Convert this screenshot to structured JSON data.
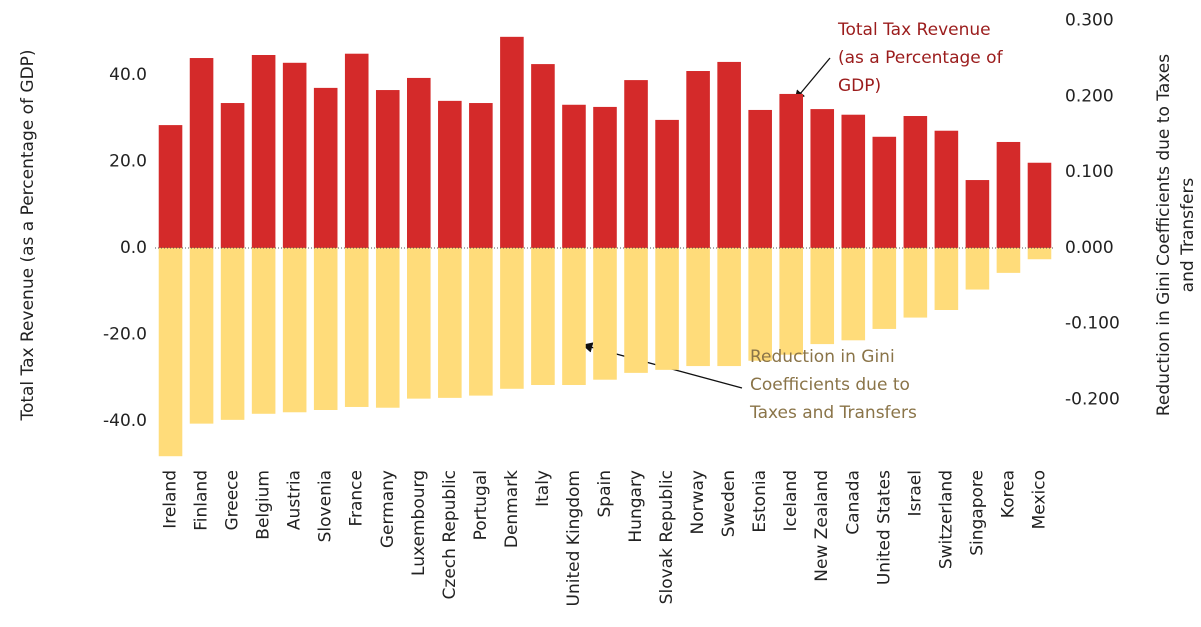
{
  "chart_data": {
    "type": "bar",
    "ylabel": "Total Tax Revenue (as a Percentage of GDP)",
    "y2label_lines": [
      "Reduction in Gini Coefficients due to Taxes",
      "and Transfers"
    ],
    "categories": [
      "Ireland",
      "Finland",
      "Greece",
      "Belgium",
      "Austria",
      "Slovenia",
      "France",
      "Germany",
      "Luxembourg",
      "Czech Republic",
      "Portugal",
      "Denmark",
      "Italy",
      "United Kingdom",
      "Spain",
      "Hungary",
      "Slovak Republic",
      "Norway",
      "Sweden",
      "Estonia",
      "Iceland",
      "New Zealand",
      "Canada",
      "United States",
      "Israel",
      "Switzerland",
      "Singapore",
      "Korea",
      "Mexico"
    ],
    "series": [
      {
        "name_lines": [
          "Total Tax Revenue",
          "(as a Percentage of",
          "GDP)"
        ],
        "color": "#d42a2a",
        "label_color": "#9b1c1c",
        "values": [
          28.4,
          43.9,
          33.5,
          44.6,
          42.8,
          37.0,
          44.9,
          36.5,
          39.3,
          34.0,
          33.5,
          48.8,
          42.5,
          33.1,
          32.6,
          38.8,
          29.6,
          40.9,
          43.0,
          31.9,
          35.6,
          32.1,
          30.8,
          25.7,
          30.5,
          27.1,
          15.7,
          24.5,
          19.7
        ]
      },
      {
        "name_lines": [
          "Reduction in Gini",
          "Coefficients due to",
          "Taxes and Transfers"
        ],
        "color": "#ffdc7a",
        "label_color": "#8a7448",
        "axis": "y2",
        "values": [
          -0.275,
          -0.232,
          -0.227,
          -0.219,
          -0.217,
          -0.214,
          -0.21,
          -0.211,
          -0.199,
          -0.198,
          -0.195,
          -0.186,
          -0.181,
          -0.181,
          -0.174,
          -0.165,
          -0.161,
          -0.156,
          -0.156,
          -0.149,
          -0.141,
          -0.127,
          -0.122,
          -0.107,
          -0.092,
          -0.082,
          -0.055,
          -0.033,
          -0.015
        ]
      }
    ],
    "ylim": [
      -49.0,
      55.0
    ],
    "yticks": [
      {
        "value": -40,
        "label": "-40.0"
      },
      {
        "value": -20,
        "label": "-20.0"
      },
      {
        "value": 0,
        "label": "0.0"
      },
      {
        "value": 20,
        "label": "20.0"
      },
      {
        "value": 40,
        "label": "40.0"
      }
    ],
    "y2lim": [
      -0.28,
      0.314
    ],
    "y2ticks": [
      {
        "value": -0.2,
        "label": "-0.200"
      },
      {
        "value": -0.1,
        "label": "-0.100"
      },
      {
        "value": 0,
        "label": "0.000"
      },
      {
        "value": 0.1,
        "label": "0.100"
      },
      {
        "value": 0.2,
        "label": "0.200"
      },
      {
        "value": 0.3,
        "label": "0.300"
      }
    ],
    "grid": false
  }
}
